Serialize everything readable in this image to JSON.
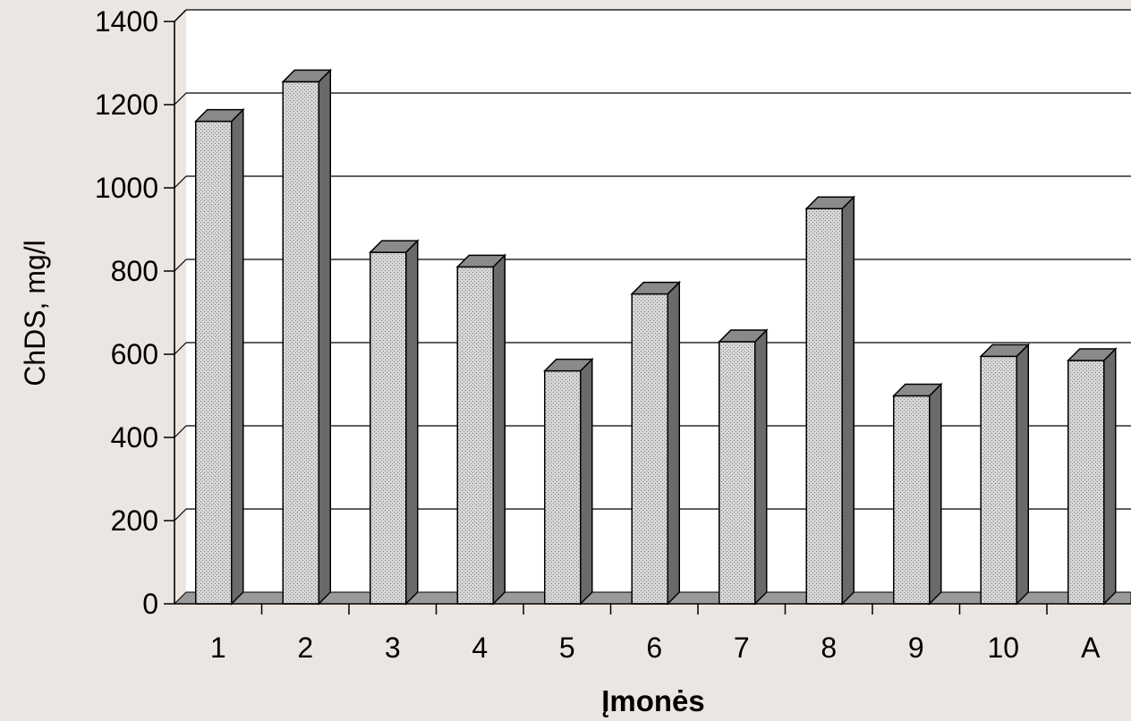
{
  "chart_data": {
    "type": "bar",
    "categories": [
      "1",
      "2",
      "3",
      "4",
      "5",
      "6",
      "7",
      "8",
      "9",
      "10",
      "A"
    ],
    "values": [
      1160,
      1255,
      845,
      810,
      560,
      745,
      630,
      950,
      500,
      595,
      585
    ],
    "xlabel": "Įmonės",
    "ylabel": "ChDS, mg/l",
    "ylim": [
      0,
      1400
    ],
    "yticks": [
      "0",
      "200",
      "400",
      "600",
      "800",
      "1000",
      "1200",
      "1400"
    ],
    "grid": true,
    "legend": "none",
    "style": "3d-column"
  },
  "colors": {
    "background": "#ece6e2",
    "plot_area": "#ffffff",
    "bar_front": "#c8c8c8",
    "bar_top": "#8a8a8a",
    "bar_side": "#6a6a6a",
    "floor": "#9a9a9a",
    "gridline": "#000000"
  }
}
